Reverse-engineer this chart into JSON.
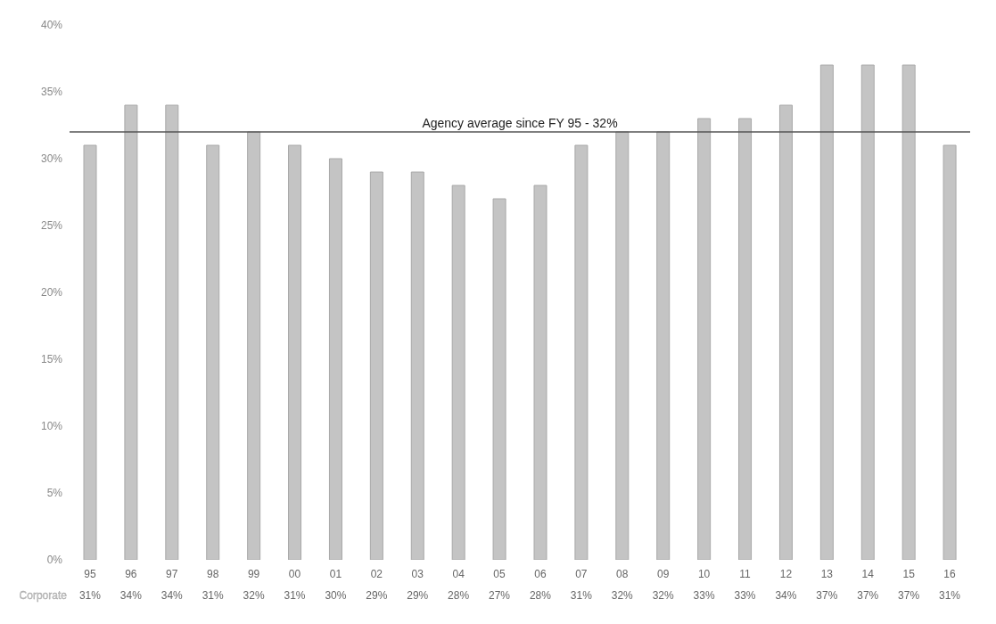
{
  "chart_data": {
    "type": "bar",
    "categories": [
      "95",
      "96",
      "97",
      "98",
      "99",
      "00",
      "01",
      "02",
      "03",
      "04",
      "05",
      "06",
      "07",
      "08",
      "09",
      "10",
      "11",
      "12",
      "13",
      "14",
      "15",
      "16"
    ],
    "series": [
      {
        "name": "Corporate",
        "color": "#c4c4c4",
        "values": [
          31,
          34,
          34,
          31,
          32,
          31,
          30,
          29,
          29,
          28,
          27,
          28,
          31,
          32,
          32,
          33,
          33,
          34,
          37,
          37,
          37,
          31
        ],
        "value_labels": [
          "31%",
          "34%",
          "34%",
          "31%",
          "32%",
          "31%",
          "30%",
          "29%",
          "29%",
          "28%",
          "27%",
          "28%",
          "31%",
          "32%",
          "32%",
          "33%",
          "33%",
          "34%",
          "37%",
          "37%",
          "37%",
          "31%"
        ]
      }
    ],
    "ylim": [
      0,
      40
    ],
    "yticks": [
      {
        "value": 0,
        "label": "0%"
      },
      {
        "value": 5,
        "label": "5%"
      },
      {
        "value": 10,
        "label": "10%"
      },
      {
        "value": 15,
        "label": "15%"
      },
      {
        "value": 20,
        "label": "20%"
      },
      {
        "value": 25,
        "label": "25%"
      },
      {
        "value": 30,
        "label": "30%"
      },
      {
        "value": 35,
        "label": "35%"
      },
      {
        "value": 40,
        "label": "40%"
      }
    ],
    "ref_lines": [
      {
        "axis": "y",
        "value": 32,
        "label": "Agency average since FY 95 - 32%",
        "color": "#555555"
      }
    ],
    "grid": false
  }
}
